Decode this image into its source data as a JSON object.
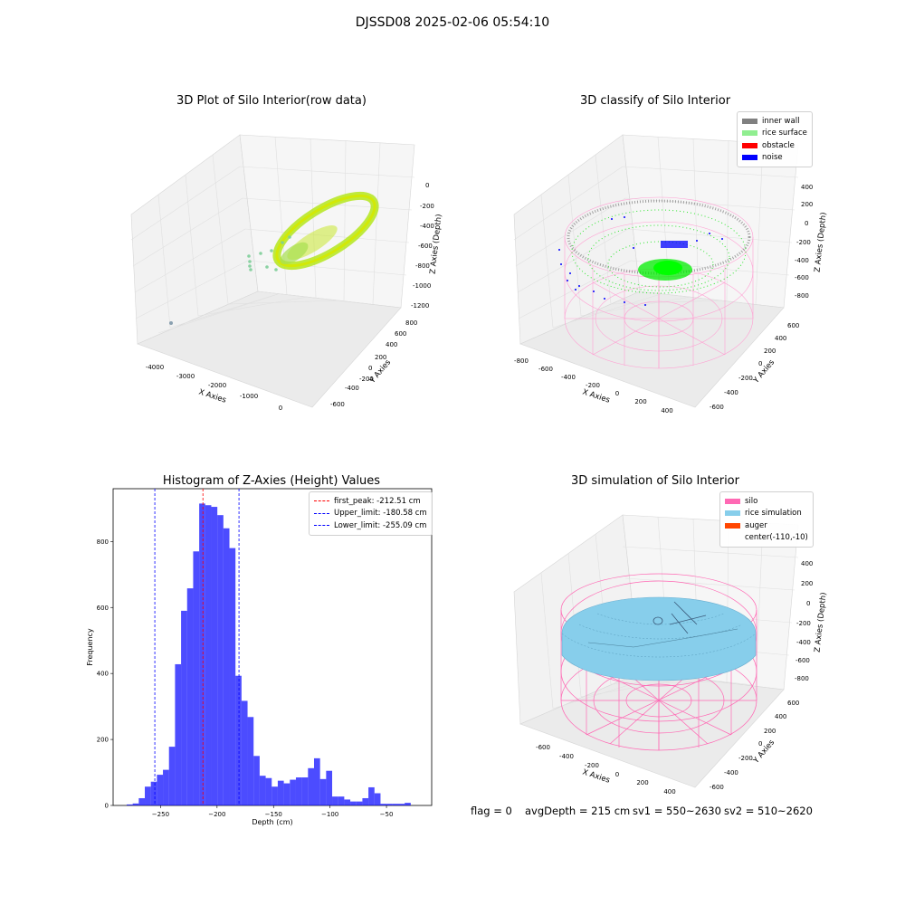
{
  "figure": {
    "suptitle": "DJSSD08 2025-02-06 05:54:10"
  },
  "panels": {
    "raw": {
      "title": "3D Plot of Silo Interior(row data)",
      "xlabel": "X Axies",
      "ylabel": "Y Axies",
      "zlabel": "Z Axies (Depth)",
      "xticks": [
        "-4000",
        "-3000",
        "-2000",
        "-1000",
        "0"
      ],
      "yticks": [
        "-600",
        "-400",
        "-200",
        "0",
        "200",
        "400",
        "600",
        "800"
      ],
      "zticks": [
        "0",
        "-200",
        "-400",
        "-600",
        "-800",
        "-1000",
        "-1200"
      ]
    },
    "classify": {
      "title": "3D classify of Silo Interior",
      "xlabel": "X Axies",
      "ylabel": "Y Axies",
      "zlabel": "Z Axies (Depth)",
      "xticks": [
        "-800",
        "-600",
        "-400",
        "-200",
        "0",
        "200",
        "400"
      ],
      "yticks": [
        "-600",
        "-400",
        "-200",
        "0",
        "200",
        "400",
        "600"
      ],
      "zticks": [
        "400",
        "200",
        "0",
        "-200",
        "-400",
        "-600",
        "-800"
      ],
      "legend": [
        {
          "label": "inner wall",
          "color": "#808080"
        },
        {
          "label": "rice surface",
          "color": "#90ee90"
        },
        {
          "label": "obstacle",
          "color": "#ff0000"
        },
        {
          "label": "noise",
          "color": "#0000ff"
        }
      ]
    },
    "simulation": {
      "title": "3D simulation of Silo Interior",
      "xlabel": "X Axies",
      "ylabel": "Y Axies",
      "zlabel": "Z Axies (Depth)",
      "xticks": [
        "-600",
        "-400",
        "-200",
        "0",
        "200",
        "400"
      ],
      "yticks": [
        "-600",
        "-400",
        "-200",
        "0",
        "200",
        "400",
        "600"
      ],
      "zticks": [
        "400",
        "200",
        "0",
        "-200",
        "-400",
        "-600",
        "-800"
      ],
      "legend": [
        {
          "label": "silo",
          "color": "#ff69b4"
        },
        {
          "label": "rice simulation",
          "color": "#87ceeb"
        },
        {
          "label": "auger",
          "color": "#ff4500"
        },
        {
          "label": "center(-110,-10)",
          "color": ""
        }
      ]
    }
  },
  "status": {
    "flag": "flag = 0",
    "avg_depth": "avgDepth = 215 cm",
    "sv1": "sv1 = 550~2630",
    "sv2": "sv2 = 510~2620"
  },
  "chart_data": [
    {
      "type": "bar",
      "title": "Histogram of Z-Axies (Height) Values",
      "xlabel": "Depth (cm)",
      "ylabel": "Frequency",
      "xlim": [
        -292,
        -10
      ],
      "ylim": [
        0,
        960
      ],
      "xticks": [
        -250,
        -200,
        -150,
        -100,
        -50
      ],
      "yticks": [
        0,
        200,
        400,
        600,
        800
      ],
      "bin_start": -280,
      "bin_width": 5.35,
      "color": "#0000ff",
      "values": [
        3,
        6,
        22,
        57,
        72,
        93,
        108,
        178,
        428,
        590,
        658,
        770,
        915,
        910,
        905,
        880,
        840,
        780,
        393,
        317,
        268,
        150,
        90,
        83,
        57,
        75,
        67,
        78,
        85,
        85,
        113,
        143,
        80,
        105,
        27,
        27,
        18,
        12,
        12,
        22,
        55,
        37,
        5,
        5,
        5,
        5,
        8
      ],
      "lines": [
        {
          "label": "first_peak: -212.51 cm",
          "x": -212.51,
          "color": "#ff0000"
        },
        {
          "label": "Upper_limit: -180.58 cm",
          "x": -180.58,
          "color": "#0000ff"
        },
        {
          "label": "Lower_limit: -255.09 cm",
          "x": -255.09,
          "color": "#0000ff"
        }
      ],
      "legend_position": "upper right"
    }
  ]
}
